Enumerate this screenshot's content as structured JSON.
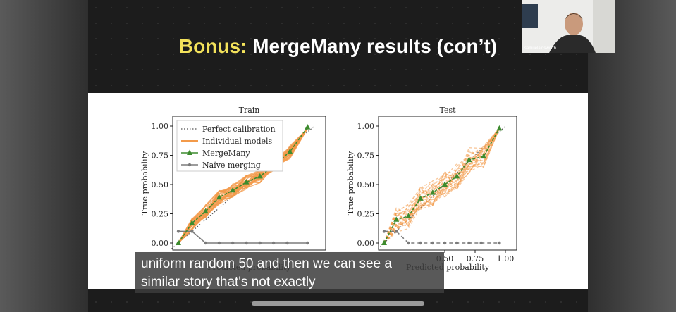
{
  "slide": {
    "title_accent": "Bonus:",
    "title_rest": "MergeMany results (con’t)"
  },
  "webcam": {
    "name": "samuelainsworth"
  },
  "caption": {
    "line1": "uniform random 50 and then we can see a",
    "line2": "similar story that's not exactly"
  },
  "colors": {
    "individual": "#f39a4a",
    "mergemany": "#3d8b2e",
    "naive": "#7b7b7b",
    "perfect": "#555555",
    "title_accent": "#f3e25b"
  },
  "chart_data": [
    {
      "type": "line",
      "title": "Train",
      "xlabel": "Predicted probability",
      "ylabel": "True probability",
      "xlim": [
        0,
        1
      ],
      "ylim": [
        0,
        1
      ],
      "yticks": [
        "0.00",
        "0.25",
        "0.50",
        "0.75",
        "1.00"
      ],
      "legend": [
        "Perfect calibration",
        "Individual models",
        "MergeMany",
        "Naïve merging"
      ],
      "legend_position": "top-left",
      "series": [
        {
          "name": "MergeMany",
          "x": [
            0.0,
            0.1,
            0.2,
            0.3,
            0.4,
            0.5,
            0.6,
            0.7,
            0.82,
            0.95
          ],
          "y": [
            0.0,
            0.17,
            0.27,
            0.39,
            0.45,
            0.52,
            0.57,
            0.66,
            0.78,
            0.99
          ]
        },
        {
          "name": "Naïve merging",
          "x": [
            0.0,
            0.1,
            0.2,
            0.3,
            0.4,
            0.5,
            0.6,
            0.7,
            0.8,
            0.95
          ],
          "y": [
            0.1,
            0.1,
            0.0,
            0.0,
            0.0,
            0.0,
            0.0,
            0.0,
            0.0,
            0.0
          ]
        }
      ]
    },
    {
      "type": "line",
      "title": "Test",
      "xlabel": "Predicted probability",
      "ylabel": "True probability",
      "xlim": [
        0,
        1
      ],
      "ylim": [
        0,
        1
      ],
      "xticks": [
        "0.50",
        "0.75",
        "1.00"
      ],
      "yticks": [
        "0.00",
        "0.25",
        "0.50",
        "0.75",
        "1.00"
      ],
      "series": [
        {
          "name": "MergeMany",
          "x": [
            0.0,
            0.1,
            0.2,
            0.3,
            0.4,
            0.5,
            0.6,
            0.7,
            0.82,
            0.95
          ],
          "y": [
            0.0,
            0.2,
            0.23,
            0.38,
            0.43,
            0.5,
            0.57,
            0.71,
            0.74,
            0.98
          ]
        },
        {
          "name": "Naïve merging",
          "x": [
            0.0,
            0.1,
            0.2,
            0.3,
            0.4,
            0.5,
            0.6,
            0.7,
            0.8,
            0.95
          ],
          "y": [
            0.1,
            0.1,
            0.0,
            0.0,
            0.0,
            0.0,
            0.0,
            0.0,
            0.0,
            0.0
          ]
        }
      ]
    }
  ]
}
